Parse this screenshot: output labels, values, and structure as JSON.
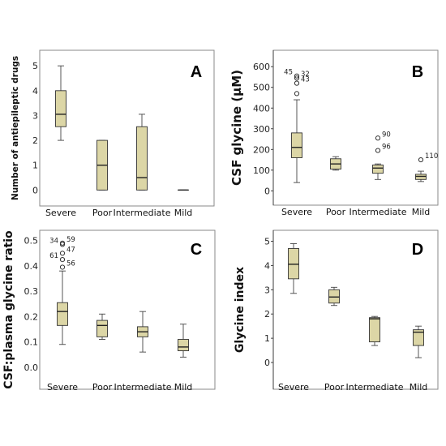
{
  "chart_data": [
    {
      "panel": "A",
      "type": "box",
      "ylabel": "Number of antiepileptic drugs",
      "ylim": [
        -0.25,
        5.3
      ],
      "yticks": [
        0,
        1,
        2,
        3,
        4,
        5
      ],
      "categories": [
        "Severe",
        "Poor",
        "Intermediate",
        "Mild"
      ],
      "boxes": [
        {
          "category": "Severe",
          "min": 2,
          "q1": 2.55,
          "median": 3.05,
          "q3": 4,
          "max": 5,
          "outliers": []
        },
        {
          "category": "Poor",
          "min": 0,
          "q1": 0,
          "median": 1,
          "q3": 2,
          "max": 2,
          "outliers": []
        },
        {
          "category": "Intermediate",
          "min": 0,
          "q1": 0,
          "median": 0.5,
          "q3": 2.55,
          "max": 3.05,
          "outliers": []
        },
        {
          "category": "Mild",
          "min": 0,
          "q1": 0,
          "median": 0,
          "q3": 0,
          "max": 0,
          "outliers": []
        }
      ]
    },
    {
      "panel": "B",
      "type": "box",
      "ylabel": "CSF glycine (μM)",
      "ylim": [
        -30,
        640
      ],
      "yticks": [
        0,
        100,
        200,
        300,
        400,
        500,
        600
      ],
      "categories": [
        "Severe",
        "Poor",
        "Intermediate",
        "Mild"
      ],
      "boxes": [
        {
          "category": "Severe",
          "min": 40,
          "q1": 160,
          "median": 210,
          "q3": 280,
          "max": 440,
          "outliers": [
            {
              "value": 470,
              "label": ""
            },
            {
              "value": 520,
              "label": "43"
            },
            {
              "value": 545,
              "label": "32"
            },
            {
              "value": 555,
              "label": "45"
            }
          ]
        },
        {
          "category": "Poor",
          "min": 100,
          "q1": 105,
          "median": 130,
          "q3": 155,
          "max": 165,
          "outliers": []
        },
        {
          "category": "Intermediate",
          "min": 55,
          "q1": 85,
          "median": 110,
          "q3": 125,
          "max": 130,
          "outliers": [
            {
              "value": 195,
              "label": "96"
            },
            {
              "value": 255,
              "label": "90"
            }
          ]
        },
        {
          "category": "Mild",
          "min": 45,
          "q1": 55,
          "median": 70,
          "q3": 80,
          "max": 95,
          "outliers": [
            {
              "value": 150,
              "label": "110"
            }
          ]
        }
      ]
    },
    {
      "panel": "C",
      "type": "box",
      "ylabel": "CSF:plasma glycine ratio",
      "ylim": [
        -0.01,
        0.515
      ],
      "yticks": [
        0,
        0.1,
        0.2,
        0.3,
        0.4,
        0.5
      ],
      "categories": [
        "Severe",
        "Poor",
        "Intermediate",
        "Mild"
      ],
      "boxes": [
        {
          "category": "Severe",
          "min": 0.09,
          "q1": 0.165,
          "median": 0.22,
          "q3": 0.255,
          "max": 0.38,
          "outliers": [
            {
              "value": 0.395,
              "label": "56"
            },
            {
              "value": 0.425,
              "label": "61"
            },
            {
              "value": 0.45,
              "label": "47"
            },
            {
              "value": 0.485,
              "label": "34"
            },
            {
              "value": 0.49,
              "label": "59"
            }
          ]
        },
        {
          "category": "Poor",
          "min": 0.11,
          "q1": 0.12,
          "median": 0.165,
          "q3": 0.185,
          "max": 0.21,
          "outliers": []
        },
        {
          "category": "Intermediate",
          "min": 0.06,
          "q1": 0.12,
          "median": 0.14,
          "q3": 0.16,
          "max": 0.22,
          "outliers": []
        },
        {
          "category": "Mild",
          "min": 0.04,
          "q1": 0.065,
          "median": 0.08,
          "q3": 0.11,
          "max": 0.17,
          "outliers": []
        }
      ]
    },
    {
      "panel": "D",
      "type": "box",
      "ylabel": "Glycine index",
      "ylim": [
        -0.3,
        5.25
      ],
      "yticks": [
        0,
        1,
        2,
        3,
        4,
        5
      ],
      "categories": [
        "Severe",
        "Poor",
        "Intermediate",
        "Mild"
      ],
      "boxes": [
        {
          "category": "Severe",
          "min": 2.85,
          "q1": 3.45,
          "median": 4.05,
          "q3": 4.7,
          "max": 4.9,
          "outliers": []
        },
        {
          "category": "Poor",
          "min": 2.35,
          "q1": 2.45,
          "median": 2.7,
          "q3": 3.0,
          "max": 3.1,
          "outliers": []
        },
        {
          "category": "Intermediate",
          "min": 0.7,
          "q1": 0.85,
          "median": 1.8,
          "q3": 1.85,
          "max": 1.9,
          "outliers": []
        },
        {
          "category": "Mild",
          "min": 0.2,
          "q1": 0.7,
          "median": 1.25,
          "q3": 1.35,
          "max": 1.5,
          "outliers": []
        }
      ]
    }
  ],
  "colors": {
    "box_fill": "#dcd6a6",
    "stroke": "#333333",
    "frame": "#8a8a8a"
  }
}
